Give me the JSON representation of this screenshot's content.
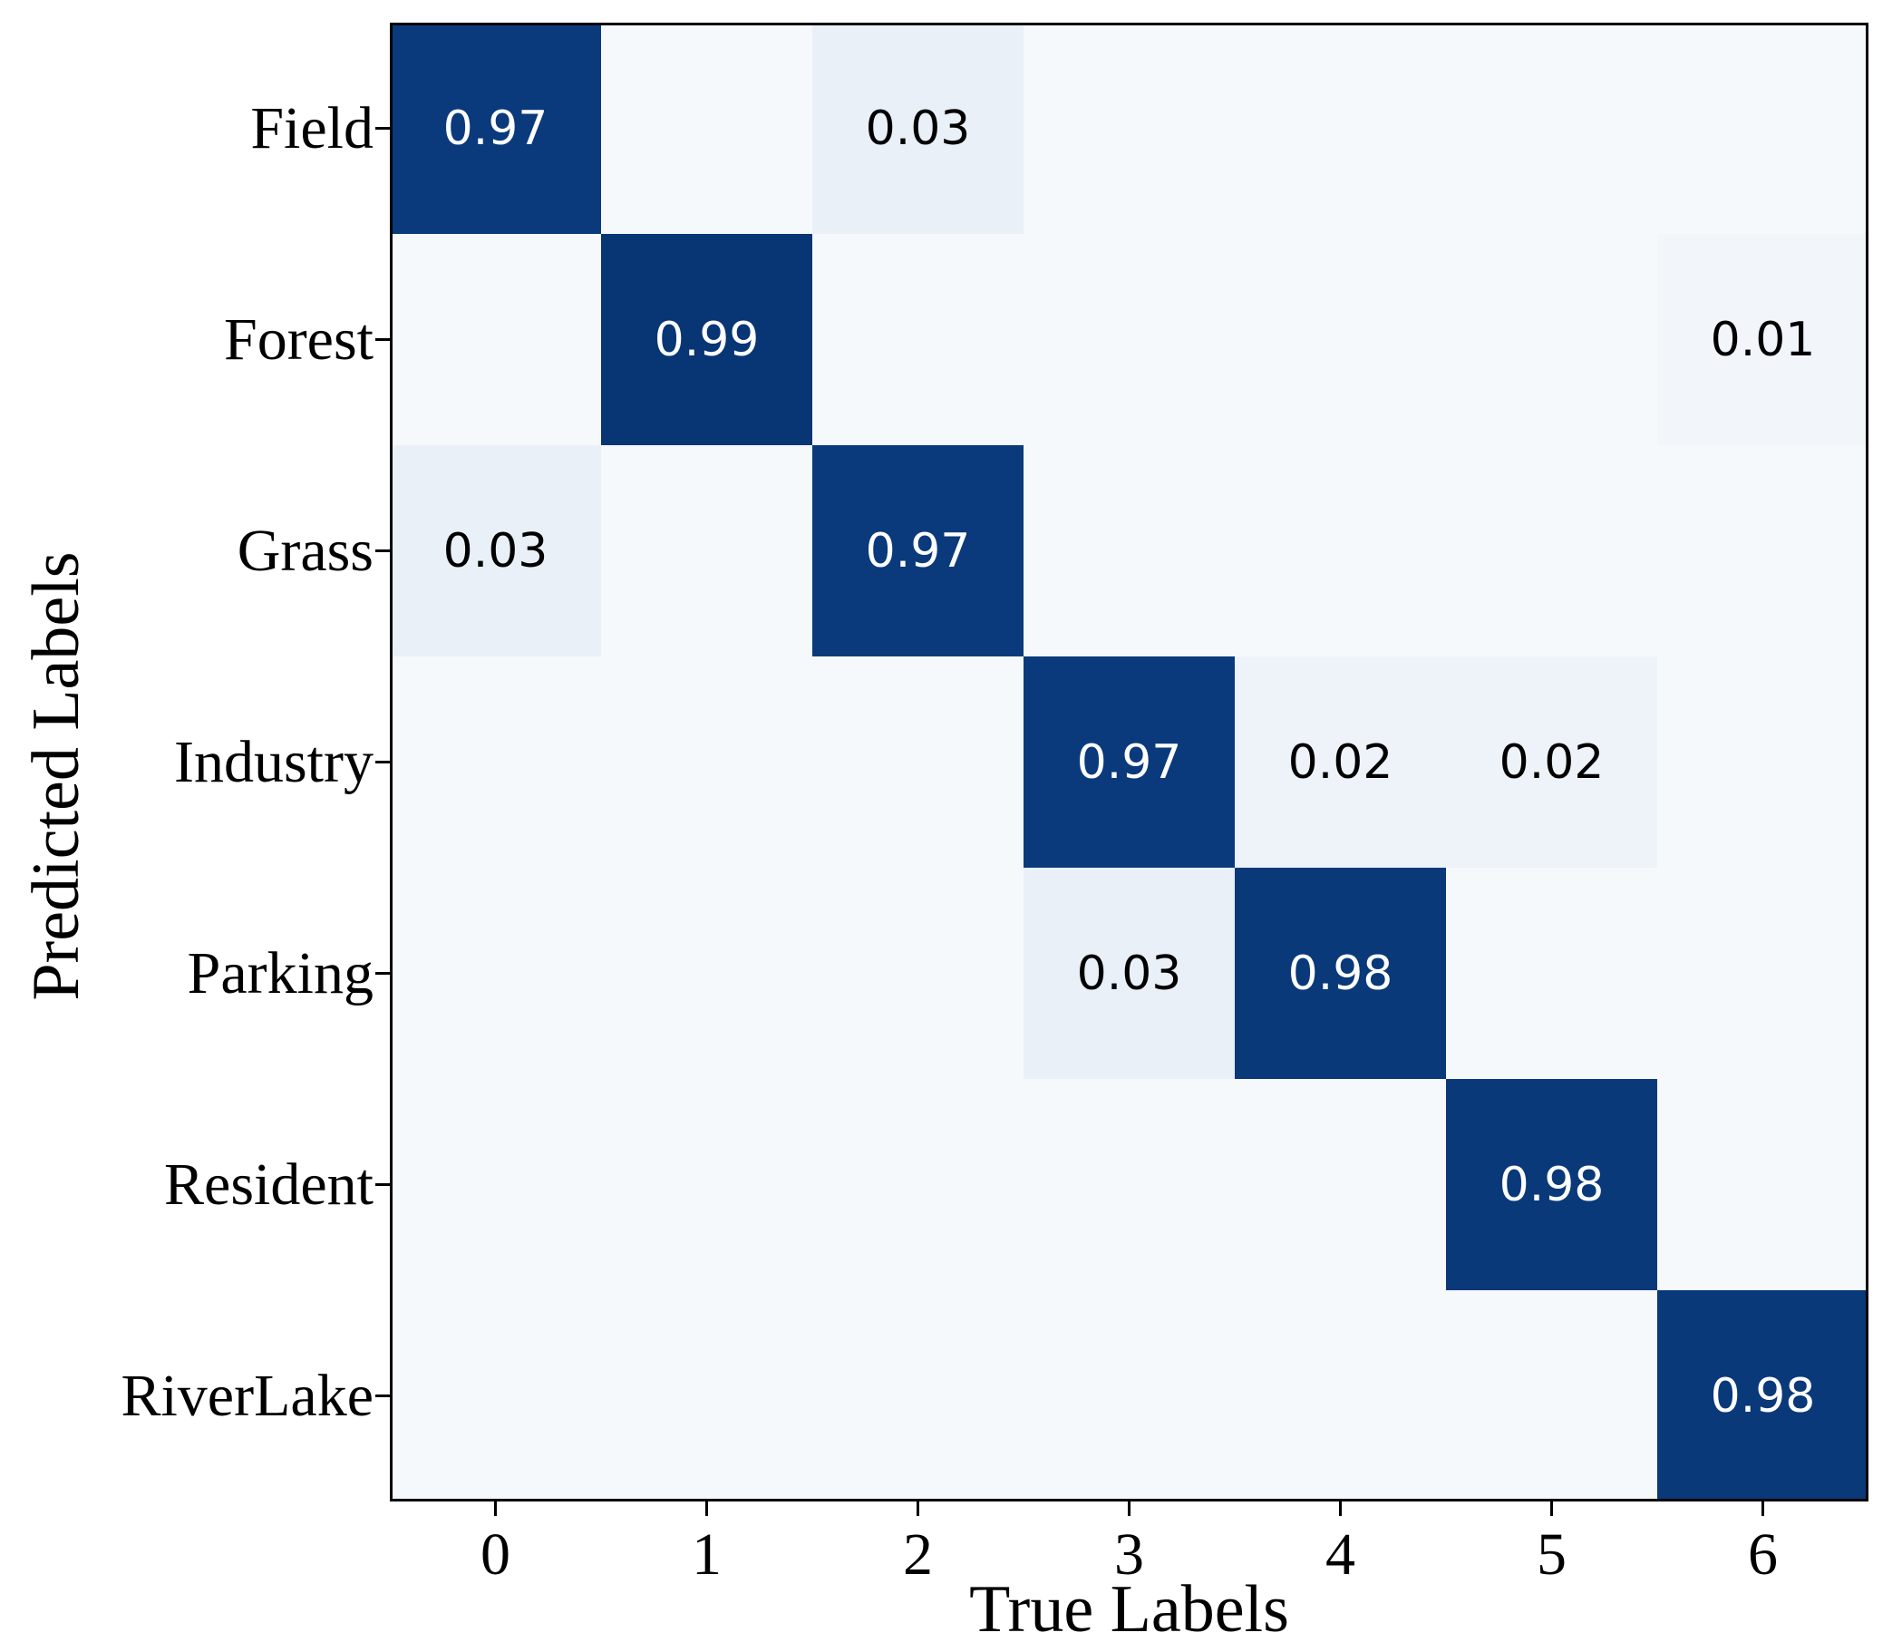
{
  "chart_data": {
    "type": "heatmap",
    "title": "",
    "xlabel": "True Labels",
    "ylabel": "Predicted Labels",
    "x_ticklabels": [
      "0",
      "1",
      "2",
      "3",
      "4",
      "5",
      "6"
    ],
    "y_ticklabels": [
      "Field",
      "Forest",
      "Grass",
      "Industry",
      "Parking",
      "Resident",
      "RiverLake"
    ],
    "matrix": [
      [
        0.97,
        0,
        0.03,
        0,
        0,
        0,
        0
      ],
      [
        0,
        0.99,
        0,
        0,
        0,
        0,
        0.01
      ],
      [
        0.03,
        0,
        0.97,
        0,
        0,
        0,
        0
      ],
      [
        0,
        0,
        0,
        0.97,
        0.02,
        0.02,
        0
      ],
      [
        0,
        0,
        0,
        0.03,
        0.98,
        0,
        0
      ],
      [
        0,
        0,
        0,
        0,
        0,
        0.98,
        0
      ],
      [
        0,
        0,
        0,
        0,
        0,
        0,
        0.98
      ]
    ],
    "shown_cell_values": [
      "0.97",
      "0.03",
      "0.99",
      "0.01",
      "0.03",
      "0.97",
      "0.97",
      "0.02",
      "0.02",
      "0.03",
      "0.98",
      "0.98",
      "0.98"
    ],
    "colormap": "Blues",
    "grid": false,
    "legend": false,
    "value_colors": {
      "0": "#f6f9fc",
      "0.01": "#f2f6fb",
      "0.02": "#edf3f9",
      "0.03": "#e9f0f8",
      "0.97": "#0a3a7c",
      "0.98": "#093979",
      "0.99": "#083573"
    },
    "text_color_on_dark": "#ffffff",
    "text_color_on_light": "#000000",
    "spine_color": "#000000",
    "background_color": "#ffffff"
  }
}
